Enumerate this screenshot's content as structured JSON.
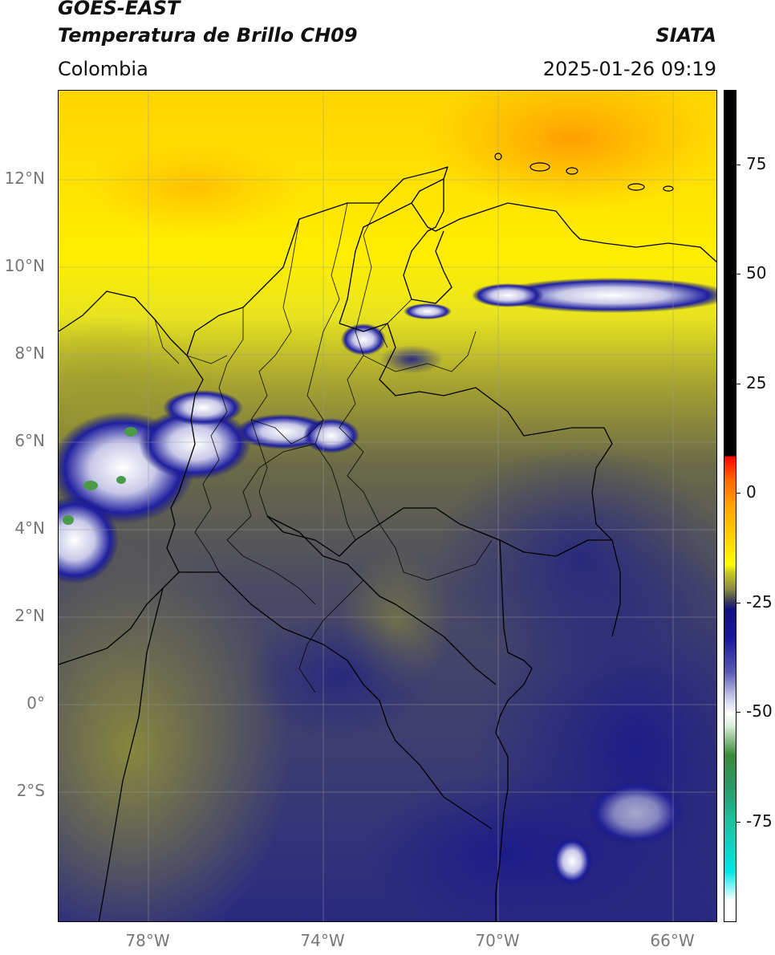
{
  "header": {
    "title_line1": "GOES-EAST",
    "title_line2": "Temperatura de Brillo CH09",
    "source": "SIATA",
    "region": "Colombia",
    "timestamp": "2025-01-26 09:19"
  },
  "map": {
    "lat_labels": [
      "12°N",
      "10°N",
      "8°N",
      "6°N",
      "4°N",
      "2°N",
      "0°",
      "2°S"
    ],
    "lon_labels": [
      "78°W",
      "74°W",
      "70°W",
      "66°W"
    ]
  },
  "colorbar": {
    "labels": [
      "75",
      "50",
      "25",
      "0",
      "-25",
      "-50",
      "-75"
    ],
    "colors": {
      "warm_top": "#000000",
      "red": "#ff0000",
      "orange": "#ffa500",
      "yellow": "#ffff00",
      "olive": "#8a8a40",
      "navy": "#101080",
      "white": "#ffffff",
      "green": "#3a8a3a",
      "cyan": "#00e5e5"
    }
  }
}
